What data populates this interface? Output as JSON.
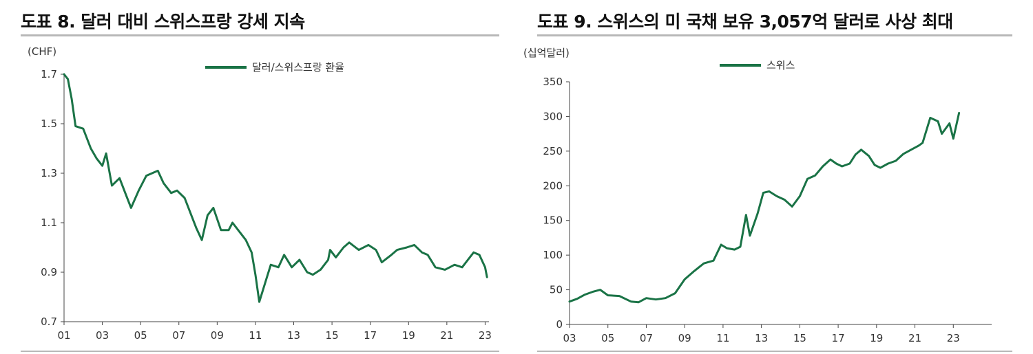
{
  "chart_data": [
    {
      "type": "line",
      "title": "도표 8. 달러 대비 스위스프랑 강세 지속",
      "unit_label": "(CHF)",
      "legend_position": "top-center",
      "grid": false,
      "ylim": [
        0.7,
        1.7
      ],
      "y_ticks": [
        "1.7",
        "1.5",
        "1.3",
        "1.1",
        "0.9",
        "0.7"
      ],
      "xlim": [
        2001,
        2023.2
      ],
      "x_ticks": [
        "01",
        "03",
        "05",
        "07",
        "09",
        "11",
        "13",
        "15",
        "17",
        "19",
        "21",
        "23"
      ],
      "series": [
        {
          "name": "달러/스위스프랑 환율",
          "color": "#1a7346",
          "x": [
            2001.0,
            2001.2,
            2001.4,
            2001.6,
            2002.0,
            2002.4,
            2002.7,
            2003.0,
            2003.2,
            2003.5,
            2003.9,
            2004.2,
            2004.5,
            2004.9,
            2005.3,
            2005.9,
            2006.2,
            2006.6,
            2006.9,
            2007.3,
            2007.9,
            2008.2,
            2008.5,
            2008.8,
            2009.2,
            2009.6,
            2009.8,
            2010.1,
            2010.5,
            2010.8,
            2011.0,
            2011.2,
            2011.6,
            2011.8,
            2012.2,
            2012.5,
            2012.9,
            2013.3,
            2013.7,
            2014.0,
            2014.4,
            2014.8,
            2014.9,
            2015.2,
            2015.6,
            2015.9,
            2016.4,
            2016.9,
            2017.3,
            2017.6,
            2018.1,
            2018.4,
            2018.9,
            2019.3,
            2019.7,
            2020.0,
            2020.4,
            2020.9,
            2021.4,
            2021.8,
            2022.1,
            2022.4,
            2022.7,
            2023.0,
            2023.1
          ],
          "values": [
            1.7,
            1.68,
            1.6,
            1.49,
            1.48,
            1.4,
            1.36,
            1.33,
            1.38,
            1.25,
            1.28,
            1.22,
            1.16,
            1.23,
            1.29,
            1.31,
            1.26,
            1.22,
            1.23,
            1.2,
            1.08,
            1.03,
            1.13,
            1.16,
            1.07,
            1.07,
            1.1,
            1.07,
            1.03,
            0.98,
            0.89,
            0.78,
            0.88,
            0.93,
            0.92,
            0.97,
            0.92,
            0.95,
            0.9,
            0.89,
            0.91,
            0.95,
            0.99,
            0.96,
            1.0,
            1.02,
            0.99,
            1.01,
            0.99,
            0.94,
            0.97,
            0.99,
            1.0,
            1.01,
            0.98,
            0.97,
            0.92,
            0.91,
            0.93,
            0.92,
            0.95,
            0.98,
            0.97,
            0.92,
            0.88
          ]
        }
      ]
    },
    {
      "type": "line",
      "title": "도표 9. 스위스의 미 국채 보유 3,057억 달러로 사상 최대",
      "unit_label": "(십억달러)",
      "legend_position": "top-center",
      "grid": false,
      "ylim": [
        0,
        350
      ],
      "y_ticks": [
        "350",
        "300",
        "250",
        "200",
        "150",
        "100",
        "50",
        "0"
      ],
      "xlim": [
        2003,
        2025
      ],
      "x_ticks": [
        "03",
        "05",
        "07",
        "09",
        "11",
        "13",
        "15",
        "17",
        "19",
        "21",
        "23"
      ],
      "series": [
        {
          "name": "스위스",
          "color": "#1a7346",
          "x": [
            2003.0,
            2003.4,
            2003.8,
            2004.2,
            2004.6,
            2005.0,
            2005.6,
            2006.2,
            2006.6,
            2007.0,
            2007.5,
            2008.0,
            2008.5,
            2009.0,
            2009.5,
            2010.0,
            2010.5,
            2010.9,
            2011.2,
            2011.6,
            2011.9,
            2012.2,
            2012.4,
            2012.8,
            2013.1,
            2013.4,
            2013.8,
            2014.2,
            2014.6,
            2015.0,
            2015.4,
            2015.8,
            2016.2,
            2016.6,
            2016.9,
            2017.2,
            2017.6,
            2017.9,
            2018.2,
            2018.6,
            2018.9,
            2019.2,
            2019.6,
            2020.0,
            2020.4,
            2020.8,
            2021.2,
            2021.4,
            2021.8,
            2022.2,
            2022.4,
            2022.8,
            2023.0,
            2023.3
          ],
          "values": [
            33,
            37,
            43,
            47,
            50,
            42,
            41,
            33,
            32,
            38,
            36,
            38,
            45,
            65,
            77,
            88,
            92,
            115,
            110,
            108,
            112,
            158,
            128,
            160,
            190,
            192,
            185,
            180,
            170,
            185,
            210,
            215,
            228,
            238,
            232,
            228,
            232,
            245,
            252,
            243,
            230,
            226,
            232,
            236,
            246,
            252,
            258,
            262,
            298,
            293,
            275,
            290,
            268,
            305
          ]
        }
      ]
    }
  ]
}
